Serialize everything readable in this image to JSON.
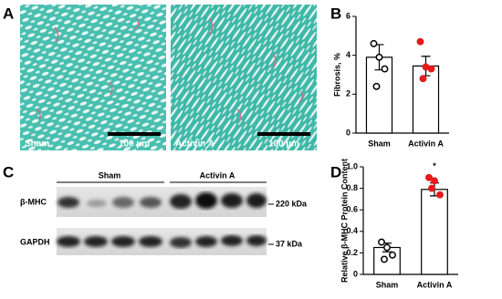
{
  "panel_labels": [
    "A",
    "B",
    "C",
    "D"
  ],
  "panel_a": {
    "images": [
      {
        "label": "Sham",
        "scale_bar": "100 µm"
      },
      {
        "label": "Activin A",
        "scale_bar": "100 µm"
      }
    ]
  },
  "panel_c": {
    "groups": [
      "Sham",
      "Activin A"
    ],
    "rows": [
      {
        "label": "β-MHC",
        "size": "220 kDa"
      },
      {
        "label": "GAPDH",
        "size": "37 kDa"
      }
    ]
  },
  "chart_data": [
    {
      "type": "bar",
      "ylabel": "Fibrosis, %",
      "categories": [
        "Sham",
        "Activin A"
      ],
      "values": [
        3.9,
        3.45
      ],
      "errors": [
        0.65,
        0.5
      ],
      "points": [
        [
          4.6,
          3.9,
          3.3,
          2.4
        ],
        [
          4.7,
          3.4,
          3.3,
          2.8
        ]
      ],
      "point_fill": [
        "#ffffff",
        "#e41a1c"
      ],
      "point_stroke": [
        "#000000",
        "#e41a1c"
      ],
      "ylim": [
        0,
        6
      ],
      "yticks": [
        0,
        2,
        4,
        6
      ]
    },
    {
      "type": "bar",
      "ylabel": "Relative β-MHC Protein Content",
      "categories": [
        "Sham",
        "Activin A"
      ],
      "values": [
        0.25,
        0.79
      ],
      "errors": [
        0.04,
        0.06
      ],
      "points": [
        [
          0.3,
          0.25,
          0.18,
          0.14
        ],
        [
          0.9,
          0.87,
          0.74,
          0.8
        ]
      ],
      "point_fill": [
        "#ffffff",
        "#e41a1c"
      ],
      "point_stroke": [
        "#000000",
        "#e41a1c"
      ],
      "annotations": [
        {
          "category": 1,
          "text": "*"
        }
      ],
      "ylim": [
        0,
        1
      ],
      "yticks": [
        0,
        0.2,
        0.4,
        0.6,
        0.8,
        {
          "value": 1,
          "label": "1.0"
        }
      ]
    }
  ]
}
